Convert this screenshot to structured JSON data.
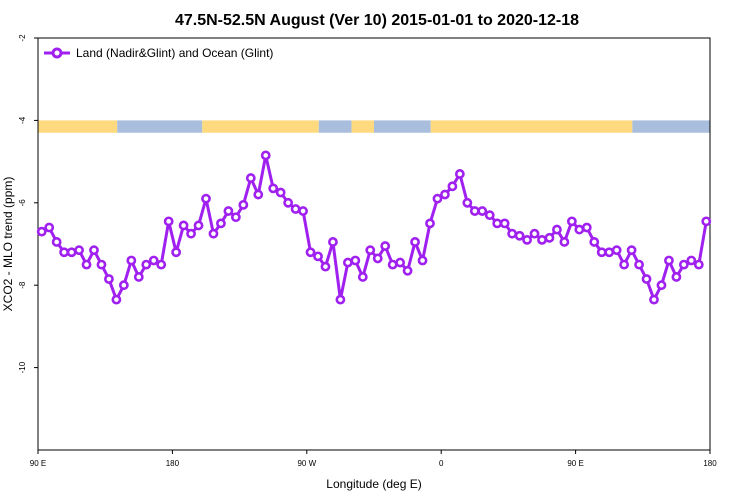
{
  "chart_data": {
    "type": "line",
    "title": "47.5N-52.5N August (Ver 10)   2015-01-01 to 2020-12-18",
    "xlabel": "Longitude (deg E)",
    "ylabel": "XCO2 - MLO trend (ppm)",
    "xlim": [
      90,
      540
    ],
    "ylim": [
      -12,
      -2
    ],
    "x_ticks": [
      {
        "value": 90,
        "label": "90 E"
      },
      {
        "value": 180,
        "label": "180"
      },
      {
        "value": 270,
        "label": "90 W"
      },
      {
        "value": 360,
        "label": "0"
      },
      {
        "value": 450,
        "label": "90 E"
      },
      {
        "value": 540,
        "label": "180"
      }
    ],
    "y_ticks": [
      {
        "value": -2,
        "label": "-2"
      },
      {
        "value": -4,
        "label": "-4"
      },
      {
        "value": -6,
        "label": "-6"
      },
      {
        "value": -8,
        "label": "-8"
      },
      {
        "value": -10,
        "label": "-10"
      }
    ],
    "legend": {
      "position": "top-left"
    },
    "land_ocean_band": {
      "y_range": [
        -4.3,
        -4.0
      ],
      "land_color": "#FFD97D",
      "ocean_color": "#A9BEDD",
      "segments": [
        {
          "from": 90,
          "to": 143,
          "type": "land"
        },
        {
          "from": 143,
          "to": 200,
          "type": "ocean"
        },
        {
          "from": 200,
          "to": 278,
          "type": "land"
        },
        {
          "from": 278,
          "to": 300,
          "type": "ocean"
        },
        {
          "from": 300,
          "to": 315,
          "type": "land"
        },
        {
          "from": 315,
          "to": 353,
          "type": "ocean"
        },
        {
          "from": 353,
          "to": 488,
          "type": "land"
        },
        {
          "from": 488,
          "to": 540,
          "type": "ocean"
        }
      ]
    },
    "series": [
      {
        "name": "Land (Nadir&Glint) and Ocean (Glint)",
        "color": "#A020F0",
        "x": [
          92.5,
          97.5,
          102.5,
          107.5,
          112.5,
          117.5,
          122.5,
          127.5,
          132.5,
          137.5,
          142.5,
          147.5,
          152.5,
          157.5,
          162.5,
          167.5,
          172.5,
          177.5,
          182.5,
          187.5,
          192.5,
          197.5,
          202.5,
          207.5,
          212.5,
          217.5,
          222.5,
          227.5,
          232.5,
          237.5,
          242.5,
          247.5,
          252.5,
          257.5,
          262.5,
          267.5,
          272.5,
          277.5,
          282.5,
          287.5,
          292.5,
          297.5,
          302.5,
          307.5,
          312.5,
          317.5,
          322.5,
          327.5,
          332.5,
          337.5,
          342.5,
          347.5,
          352.5,
          357.5,
          362.5,
          367.5,
          372.5,
          377.5,
          382.5,
          387.5,
          392.5,
          397.5,
          402.5,
          407.5,
          412.5,
          417.5,
          422.5,
          427.5,
          432.5,
          437.5,
          442.5,
          447.5,
          452.5,
          457.5,
          462.5,
          467.5,
          472.5,
          477.5,
          482.5,
          487.5,
          492.5,
          497.5,
          502.5,
          507.5,
          512.5,
          517.5,
          522.5,
          527.5,
          532.5,
          537.5
        ],
        "values": [
          -6.7,
          -6.6,
          -6.95,
          -7.2,
          -7.2,
          -7.15,
          -7.5,
          -7.15,
          -7.5,
          -7.85,
          -8.35,
          -8.0,
          -7.4,
          -7.8,
          -7.5,
          -7.4,
          -7.5,
          -6.45,
          -7.2,
          -6.55,
          -6.75,
          -6.55,
          -5.9,
          -6.75,
          -6.5,
          -6.2,
          -6.35,
          -6.05,
          -5.4,
          -5.8,
          -4.85,
          -5.65,
          -5.75,
          -6.0,
          -6.15,
          -6.2,
          -7.2,
          -7.3,
          -7.55,
          -6.95,
          -8.35,
          -7.45,
          -7.4,
          -7.8,
          -7.15,
          -7.35,
          -7.05,
          -7.5,
          -7.45,
          -7.65,
          -6.95,
          -7.4,
          -6.5,
          -5.9,
          -5.8,
          -5.6,
          -5.3,
          -6.0,
          -6.2,
          -6.2,
          -6.3,
          -6.5,
          -6.5,
          -6.75,
          -6.8,
          -6.9,
          -6.75,
          -6.9,
          -6.85,
          -6.65,
          -6.95,
          -6.45,
          -6.65,
          -6.6,
          -6.95,
          -7.2,
          -7.2,
          -7.15,
          -7.5,
          -7.15,
          -7.5,
          -7.85,
          -8.35,
          -8.0,
          -7.4,
          -7.8,
          -7.5,
          -7.4,
          -7.5,
          -6.45
        ]
      }
    ]
  }
}
